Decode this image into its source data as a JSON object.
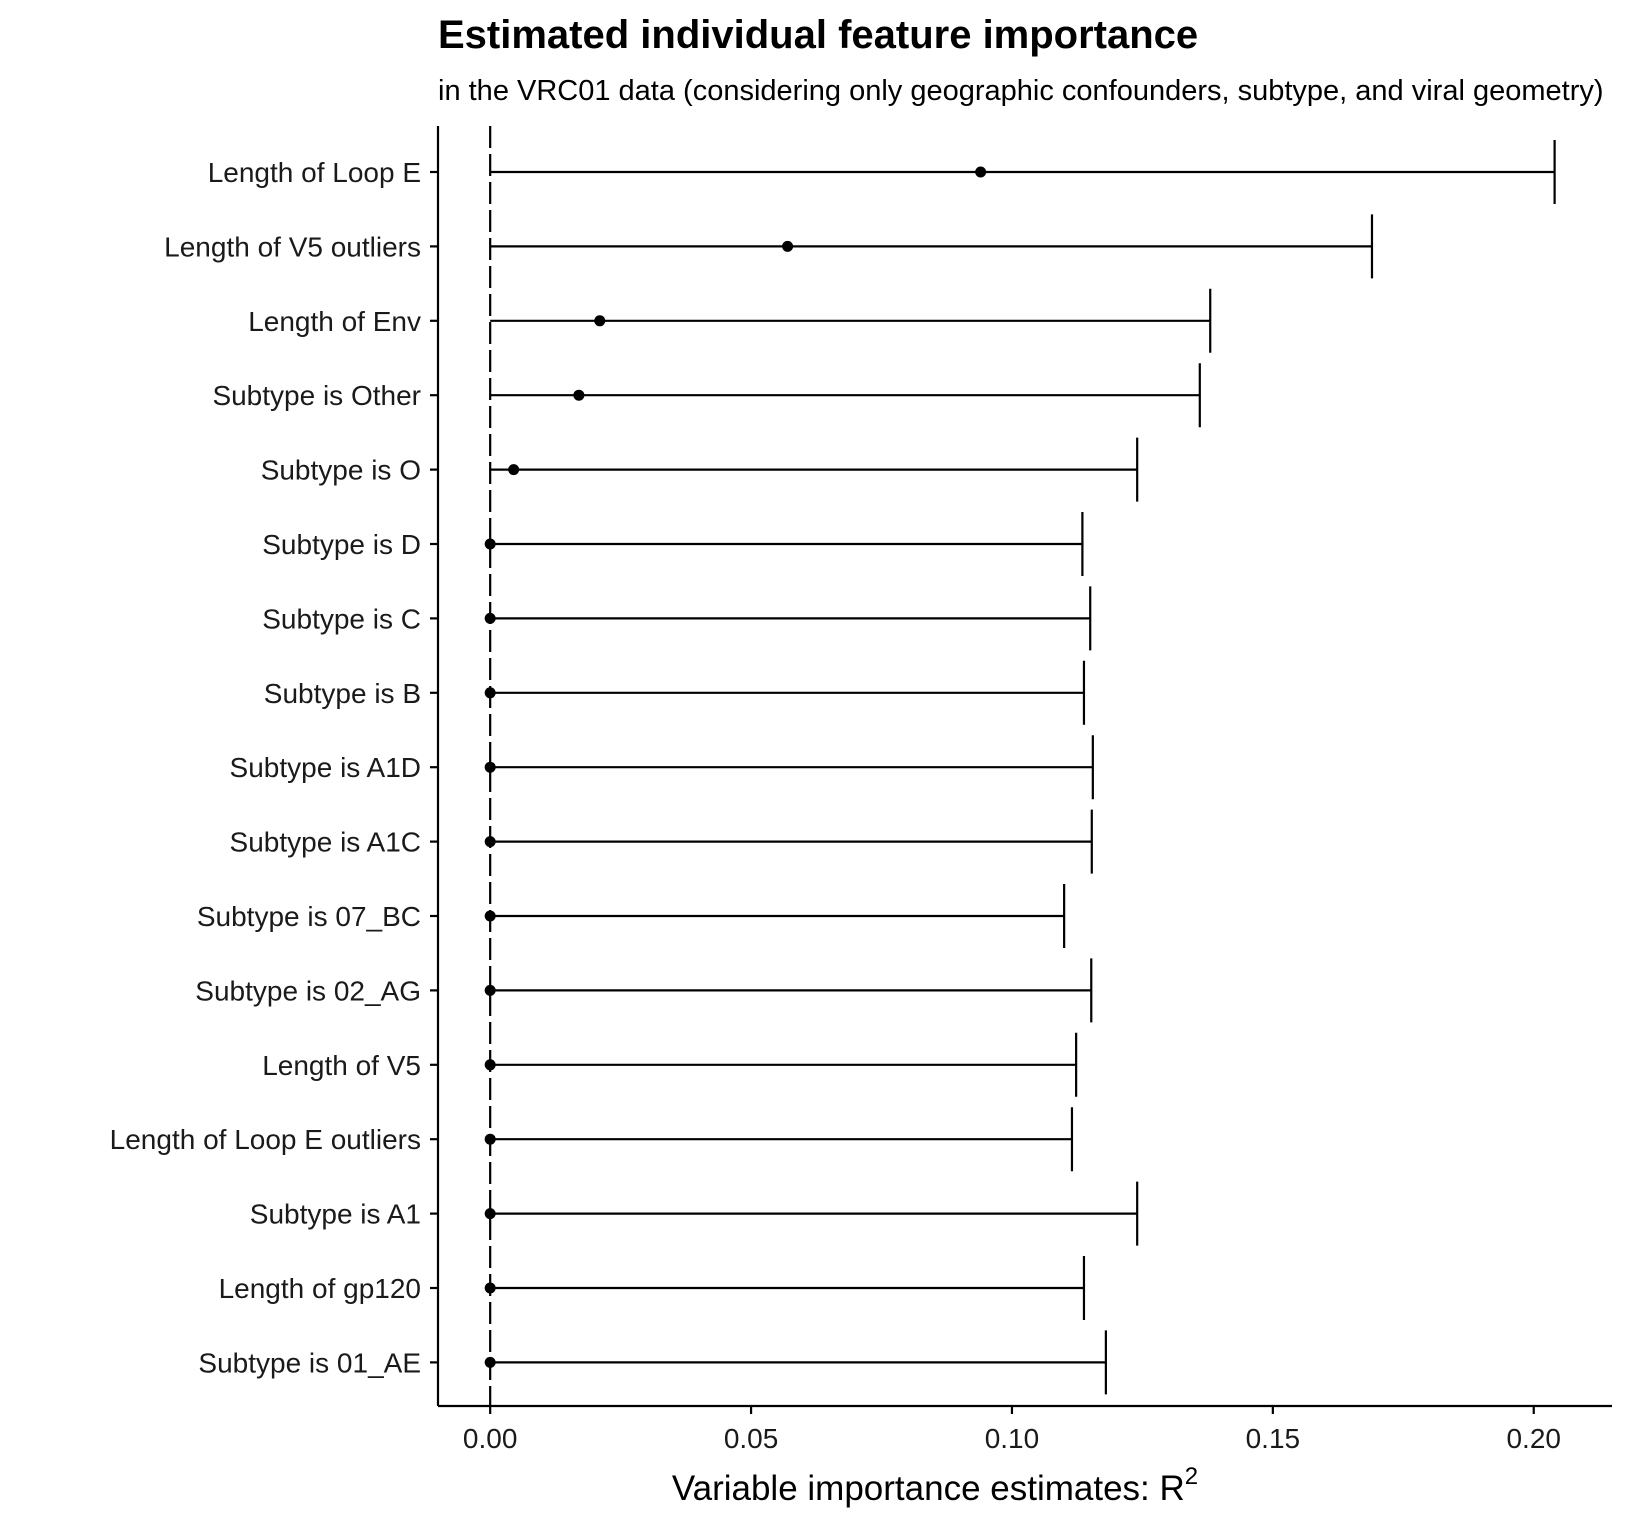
{
  "chart_data": {
    "type": "scatter",
    "title": "Estimated individual feature importance",
    "subtitle": "in the VRC01 data (considering only geographic confounders, subtype, and viral geometry)",
    "xlabel": "Variable importance estimates: R",
    "xlabel_superscript": "2",
    "xlim": [
      -0.01,
      0.215
    ],
    "xticks": [
      0.0,
      0.05,
      0.1,
      0.15,
      0.2
    ],
    "xtick_labels": [
      "0.00",
      "0.05",
      "0.10",
      "0.15",
      "0.20"
    ],
    "reference_line_x": 0,
    "grid": false,
    "legend": "none",
    "features": [
      {
        "name": "Length of Loop E",
        "estimate": 0.094,
        "lower": 0.0,
        "upper": 0.204
      },
      {
        "name": "Length of V5 outliers",
        "estimate": 0.057,
        "lower": 0.0,
        "upper": 0.169
      },
      {
        "name": "Length of Env",
        "estimate": 0.021,
        "lower": 0.0,
        "upper": 0.138
      },
      {
        "name": "Subtype is Other",
        "estimate": 0.017,
        "lower": 0.0,
        "upper": 0.136
      },
      {
        "name": "Subtype is O",
        "estimate": 0.0045,
        "lower": 0.0,
        "upper": 0.124
      },
      {
        "name": "Subtype is D",
        "estimate": 0.0,
        "lower": 0.0,
        "upper": 0.1135
      },
      {
        "name": "Subtype is C",
        "estimate": 0.0,
        "lower": 0.0,
        "upper": 0.115
      },
      {
        "name": "Subtype is B",
        "estimate": 0.0,
        "lower": 0.0,
        "upper": 0.1138
      },
      {
        "name": "Subtype is A1D",
        "estimate": 0.0,
        "lower": 0.0,
        "upper": 0.1155
      },
      {
        "name": "Subtype is A1C",
        "estimate": 0.0,
        "lower": 0.0,
        "upper": 0.1153
      },
      {
        "name": "Subtype is 07_BC",
        "estimate": 0.0,
        "lower": 0.0,
        "upper": 0.11
      },
      {
        "name": "Subtype is 02_AG",
        "estimate": 0.0,
        "lower": 0.0,
        "upper": 0.1152
      },
      {
        "name": "Length of V5",
        "estimate": 0.0,
        "lower": 0.0,
        "upper": 0.1123
      },
      {
        "name": "Length of Loop E outliers",
        "estimate": 0.0,
        "lower": 0.0,
        "upper": 0.1115
      },
      {
        "name": "Subtype is A1",
        "estimate": 0.0,
        "lower": 0.0,
        "upper": 0.124
      },
      {
        "name": "Length of gp120",
        "estimate": 0.0,
        "lower": 0.0,
        "upper": 0.1138
      },
      {
        "name": "Subtype is 01_AE",
        "estimate": 0.0,
        "lower": 0.0,
        "upper": 0.118
      }
    ]
  }
}
